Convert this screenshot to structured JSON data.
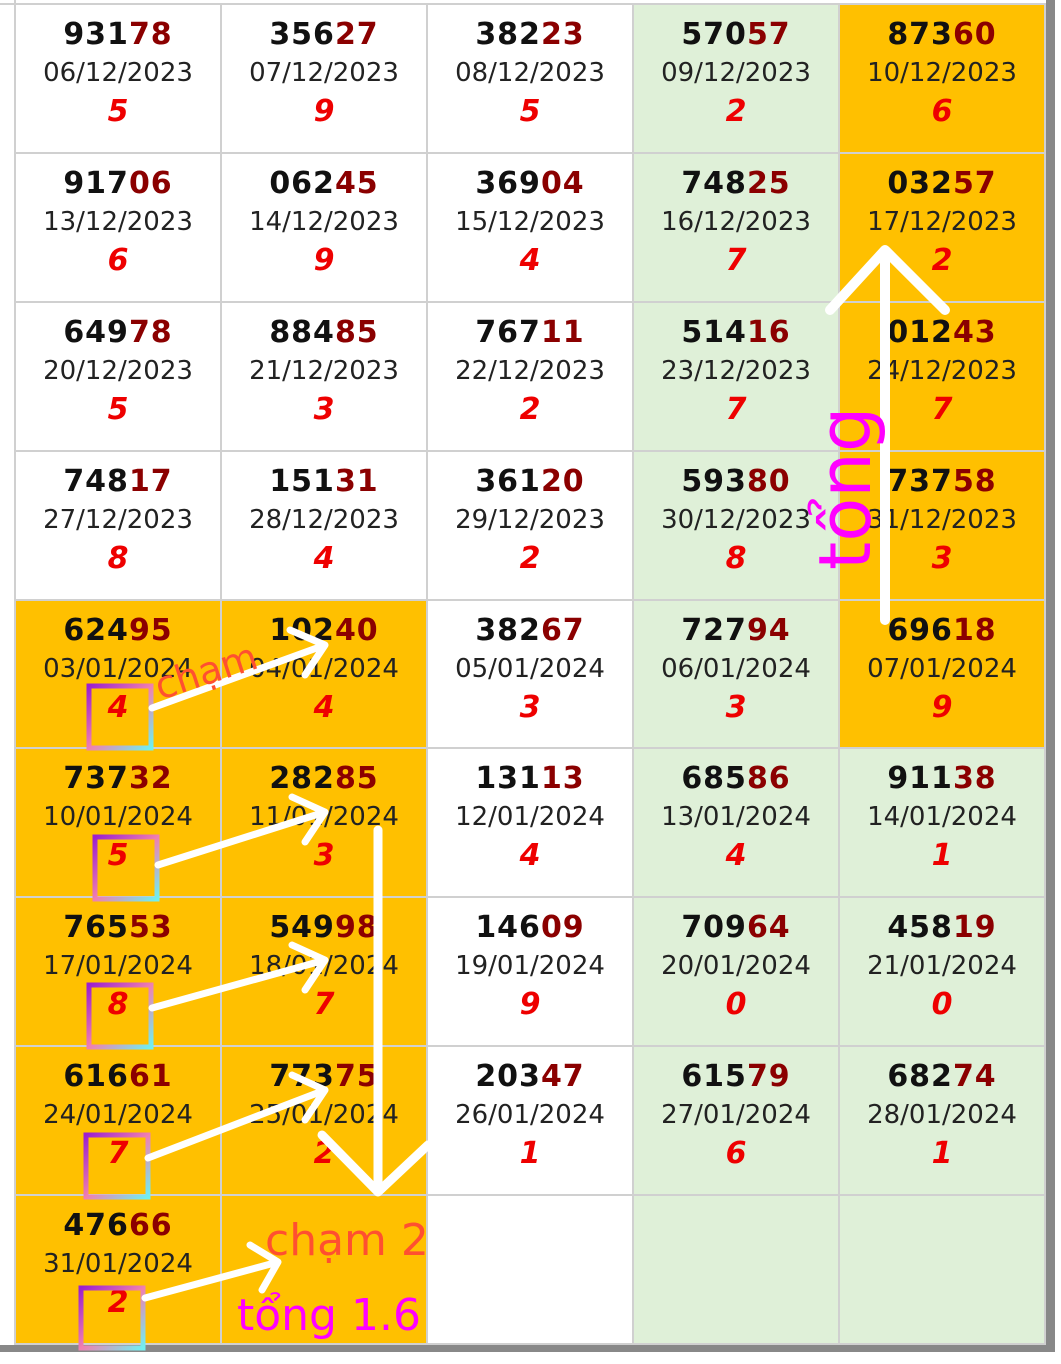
{
  "rows": [
    [
      {
        "head": "931",
        "tail": "78",
        "date": "06/12/2023",
        "sum": "5",
        "bg": "w"
      },
      {
        "head": "356",
        "tail": "27",
        "date": "07/12/2023",
        "sum": "9",
        "bg": "w"
      },
      {
        "head": "382",
        "tail": "23",
        "date": "08/12/2023",
        "sum": "5",
        "bg": "w"
      },
      {
        "head": "570",
        "tail": "57",
        "date": "09/12/2023",
        "sum": "2",
        "bg": "g"
      },
      {
        "head": "873",
        "tail": "60",
        "date": "10/12/2023",
        "sum": "6",
        "bg": "o"
      }
    ],
    [
      {
        "head": "917",
        "tail": "06",
        "date": "13/12/2023",
        "sum": "6",
        "bg": "w"
      },
      {
        "head": "062",
        "tail": "45",
        "date": "14/12/2023",
        "sum": "9",
        "bg": "w"
      },
      {
        "head": "369",
        "tail": "04",
        "date": "15/12/2023",
        "sum": "4",
        "bg": "w"
      },
      {
        "head": "748",
        "tail": "25",
        "date": "16/12/2023",
        "sum": "7",
        "bg": "g"
      },
      {
        "head": "032",
        "tail": "57",
        "date": "17/12/2023",
        "sum": "2",
        "bg": "o"
      }
    ],
    [
      {
        "head": "649",
        "tail": "78",
        "date": "20/12/2023",
        "sum": "5",
        "bg": "w"
      },
      {
        "head": "884",
        "tail": "85",
        "date": "21/12/2023",
        "sum": "3",
        "bg": "w"
      },
      {
        "head": "767",
        "tail": "11",
        "date": "22/12/2023",
        "sum": "2",
        "bg": "w"
      },
      {
        "head": "514",
        "tail": "16",
        "date": "23/12/2023",
        "sum": "7",
        "bg": "g"
      },
      {
        "head": "012",
        "tail": "43",
        "date": "24/12/2023",
        "sum": "7",
        "bg": "o"
      }
    ],
    [
      {
        "head": "748",
        "tail": "17",
        "date": "27/12/2023",
        "sum": "8",
        "bg": "w"
      },
      {
        "head": "151",
        "tail": "31",
        "date": "28/12/2023",
        "sum": "4",
        "bg": "w"
      },
      {
        "head": "361",
        "tail": "20",
        "date": "29/12/2023",
        "sum": "2",
        "bg": "w"
      },
      {
        "head": "593",
        "tail": "80",
        "date": "30/12/2023",
        "sum": "8",
        "bg": "g"
      },
      {
        "head": "737",
        "tail": "58",
        "date": "31/12/2023",
        "sum": "3",
        "bg": "o"
      }
    ],
    [
      {
        "head": "624",
        "tail": "95",
        "date": "03/01/2024",
        "sum": "4",
        "bg": "o"
      },
      {
        "head": "102",
        "tail": "40",
        "date": "04/01/2024",
        "sum": "4",
        "bg": "o"
      },
      {
        "head": "382",
        "tail": "67",
        "date": "05/01/2024",
        "sum": "3",
        "bg": "w"
      },
      {
        "head": "727",
        "tail": "94",
        "date": "06/01/2024",
        "sum": "3",
        "bg": "g"
      },
      {
        "head": "696",
        "tail": "18",
        "date": "07/01/2024",
        "sum": "9",
        "bg": "o"
      }
    ],
    [
      {
        "head": "737",
        "tail": "32",
        "date": "10/01/2024",
        "sum": "5",
        "bg": "o"
      },
      {
        "head": "282",
        "tail": "85",
        "date": "11/01/2024",
        "sum": "3",
        "bg": "o"
      },
      {
        "head": "131",
        "tail": "13",
        "date": "12/01/2024",
        "sum": "4",
        "bg": "w"
      },
      {
        "head": "685",
        "tail": "86",
        "date": "13/01/2024",
        "sum": "4",
        "bg": "g"
      },
      {
        "head": "911",
        "tail": "38",
        "date": "14/01/2024",
        "sum": "1",
        "bg": "g"
      }
    ],
    [
      {
        "head": "765",
        "tail": "53",
        "date": "17/01/2024",
        "sum": "8",
        "bg": "o"
      },
      {
        "head": "549",
        "tail": "98",
        "date": "18/01/2024",
        "sum": "7",
        "bg": "o"
      },
      {
        "head": "146",
        "tail": "09",
        "date": "19/01/2024",
        "sum": "9",
        "bg": "w"
      },
      {
        "head": "709",
        "tail": "64",
        "date": "20/01/2024",
        "sum": "0",
        "bg": "g"
      },
      {
        "head": "458",
        "tail": "19",
        "date": "21/01/2024",
        "sum": "0",
        "bg": "g"
      }
    ],
    [
      {
        "head": "616",
        "tail": "61",
        "date": "24/01/2024",
        "sum": "7",
        "bg": "o"
      },
      {
        "head": "773",
        "tail": "75",
        "date": "25/01/2024",
        "sum": "2",
        "bg": "o"
      },
      {
        "head": "203",
        "tail": "47",
        "date": "26/01/2024",
        "sum": "1",
        "bg": "w"
      },
      {
        "head": "615",
        "tail": "79",
        "date": "27/01/2024",
        "sum": "6",
        "bg": "g"
      },
      {
        "head": "682",
        "tail": "74",
        "date": "28/01/2024",
        "sum": "1",
        "bg": "g"
      }
    ],
    [
      {
        "head": "476",
        "tail": "66",
        "date": "31/01/2024",
        "sum": "2",
        "bg": "o"
      },
      {
        "bg": "o"
      },
      {
        "bg": "w"
      },
      {
        "bg": "g"
      },
      {
        "bg": "g"
      }
    ]
  ],
  "annotations": {
    "cham": "chạm",
    "tong_vertical": "tổng",
    "cham2": "chạm 2",
    "tong16": "tổng 1.6"
  },
  "colors": {
    "orange": "#FFC000",
    "green": "#DFF0D8",
    "tail": "#8B0000",
    "sum": "#EE0000",
    "magenta": "#FF00FF",
    "cham": "#FF5030"
  }
}
